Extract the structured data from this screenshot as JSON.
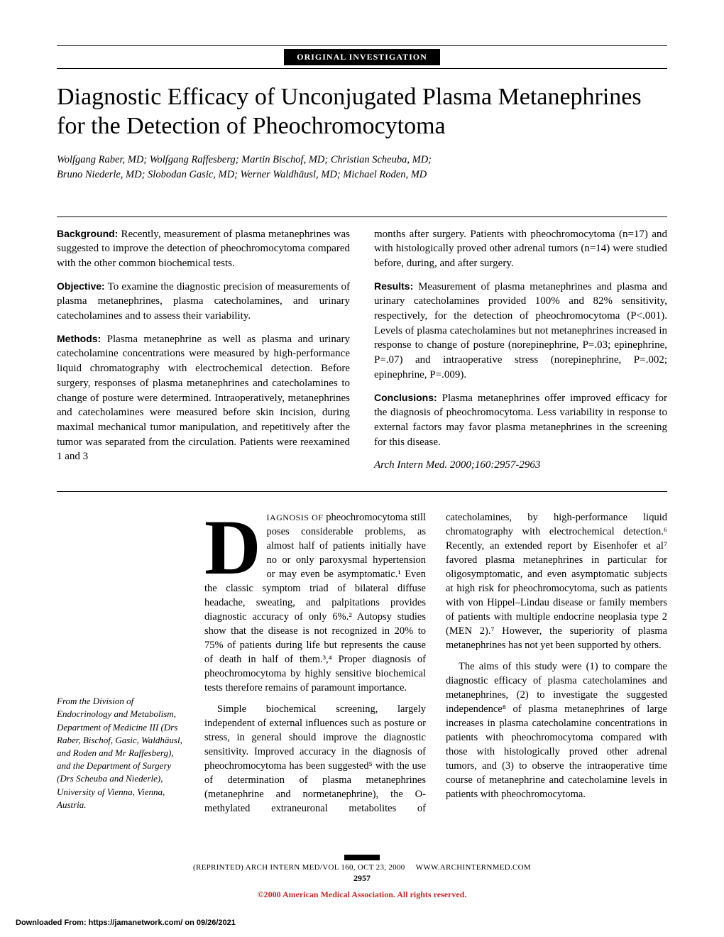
{
  "banner": {
    "label": "ORIGINAL INVESTIGATION"
  },
  "title": "Diagnostic Efficacy of Unconjugated Plasma Metanephrines for the Detection of Pheochromocytoma",
  "authors_line1": "Wolfgang Raber, MD; Wolfgang Raffesberg; Martin Bischof, MD; Christian Scheuba, MD;",
  "authors_line2": "Bruno Niederle, MD; Slobodan Gasic, MD; Werner Waldhäusl, MD; Michael Roden, MD",
  "abstract": {
    "left": {
      "h_background": "Background:",
      "p_background": " Recently, measurement of plasma metanephrines was suggested to improve the detection of pheochromocytoma compared with the other common biochemical tests.",
      "h_objective": "Objective:",
      "p_objective": " To examine the diagnostic precision of measurements of plasma metanephrines, plasma catecholamines, and urinary catecholamines and to assess their variability.",
      "h_methods": "Methods:",
      "p_methods": " Plasma metanephrine as well as plasma and urinary catecholamine concentrations were measured by high-performance liquid chromatography with electrochemical detection. Before surgery, responses of plasma metanephrines and catecholamines to change of posture were determined. Intraoperatively, metanephrines and catecholamines were measured before skin incision, during maximal mechanical tumor manipulation, and repetitively after the tumor was separated from the circulation. Patients were reexamined 1 and 3"
    },
    "right": {
      "p_methods_cont": "months after surgery. Patients with pheochromocytoma (n=17) and with histologically proved other adrenal tumors (n=14) were studied before, during, and after surgery.",
      "h_results": "Results:",
      "p_results": " Measurement of plasma metanephrines and plasma and urinary catecholamines provided 100% and 82% sensitivity, respectively, for the detection of pheochromocytoma (P<.001). Levels of plasma catecholamines but not metanephrines increased in response to change of posture (norepinephrine, P=.03; epinephrine, P=.07) and intraoperative stress (norepinephrine, P=.002; epinephrine, P=.009).",
      "h_conclusions": "Conclusions:",
      "p_conclusions": " Plasma metanephrines offer improved efficacy for the diagnosis of pheochromocytoma. Less variability in response to external factors may favor plasma metanephrines in the screening for this disease.",
      "citation": "Arch Intern Med. 2000;160:2957-2963"
    }
  },
  "affiliation": "From the Division of Endocrinology and Metabolism, Department of Medicine III (Drs Raber, Bischof, Gasic, Waldhäusl, and Roden and Mr Raffesberg), and the Department of Surgery (Drs Scheuba and Niederle), University of Vienna, Vienna, Austria.",
  "body": {
    "dropcap": "D",
    "smallcap_word": "IAGNOSIS OF",
    "p1_after": " pheochromocytoma still poses considerable problems, as almost half of patients initially have no or only paroxysmal hypertension or may even be asymptomatic.¹ Even the classic symptom triad of bilateral diffuse headache, sweating, and palpitations provides diagnostic accuracy of only 6%.² Autopsy studies show that the disease is not recognized in 20% to 75% of patients during life but represents the cause of death in half of them.³,⁴ Proper diagnosis of pheochromocytoma by highly sensitive biochemical tests therefore remains of paramount importance.",
    "p2": "Simple biochemical screening, largely independent of external influences such as posture or stress, in general should improve the diagnostic sensitivity. Improved accuracy in the diagnosis of pheochromocytoma has been suggested⁵ with the use of determination of plasma metanephrines (metanephrine and normetanephrine), the O-methylated extraneuronal metabolites of catecholamines, by high-performance liquid chromatography with electrochemical detection.⁶ Recently, an extended report by Eisenhofer et al⁷ favored plasma metanephrines in particular for oligosymptomatic, and even asymptomatic subjects at high risk for pheochromocytoma, such as patients with von Hippel–Lindau disease or family members of patients with multiple endocrine neoplasia type 2 (MEN 2).⁷ However, the superiority of plasma metanephrines has not yet been supported by others.",
    "p3": "The aims of this study were (1) to compare the diagnostic efficacy of plasma catecholamines and metanephrines, (2) to investigate the suggested independence⁸ of plasma metanephrines of large increases in plasma catecholamine concentrations in patients with pheochromocytoma compared with those with histologically proved other adrenal tumors, and (3) to observe the intraoperative time course of metanephrine and catecholamine levels in patients with pheochromocytoma."
  },
  "footer": {
    "reprint": "(REPRINTED) ARCH INTERN MED/VOL 160, OCT 23, 2000",
    "url": "WWW.ARCHINTERNMED.COM",
    "page": "2957",
    "copyright": "©2000 American Medical Association. All rights reserved."
  },
  "download": "Downloaded From: https://jamanetwork.com/ on 09/26/2021"
}
